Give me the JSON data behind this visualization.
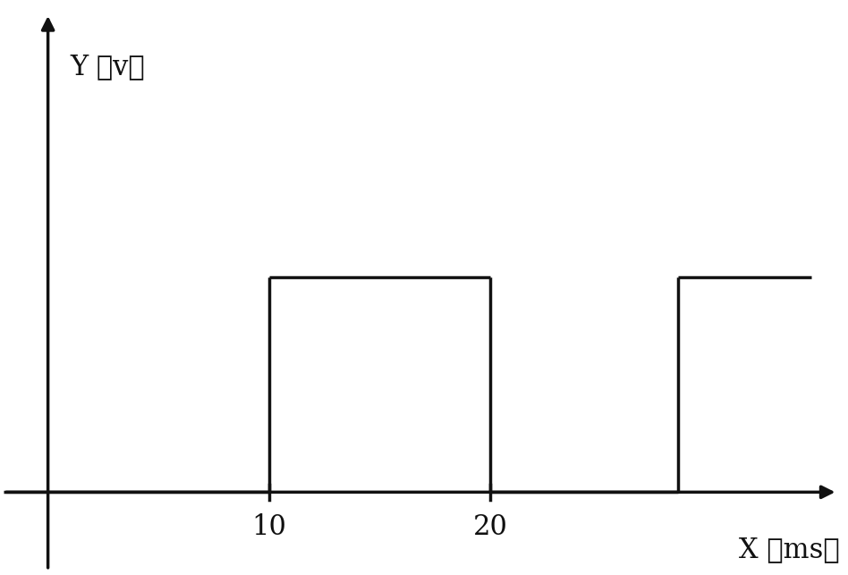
{
  "background_color": "#ffffff",
  "line_color": "#111111",
  "line_width": 2.5,
  "ylabel": "Y （v）",
  "xlabel": "X （ms）",
  "ylabel_fontsize": 22,
  "xlabel_fontsize": 22,
  "tick_label_fontsize": 22,
  "xlim": [
    -2,
    36
  ],
  "ylim": [
    -0.8,
    5.0
  ],
  "pulse_height": 2.2,
  "pulse1_start": 10,
  "pulse1_end": 20,
  "pulse2_start": 28.5,
  "pulse2_end": 34.5,
  "x_ticks": [
    10,
    20
  ],
  "x_tick_labels": [
    "10",
    "20"
  ]
}
